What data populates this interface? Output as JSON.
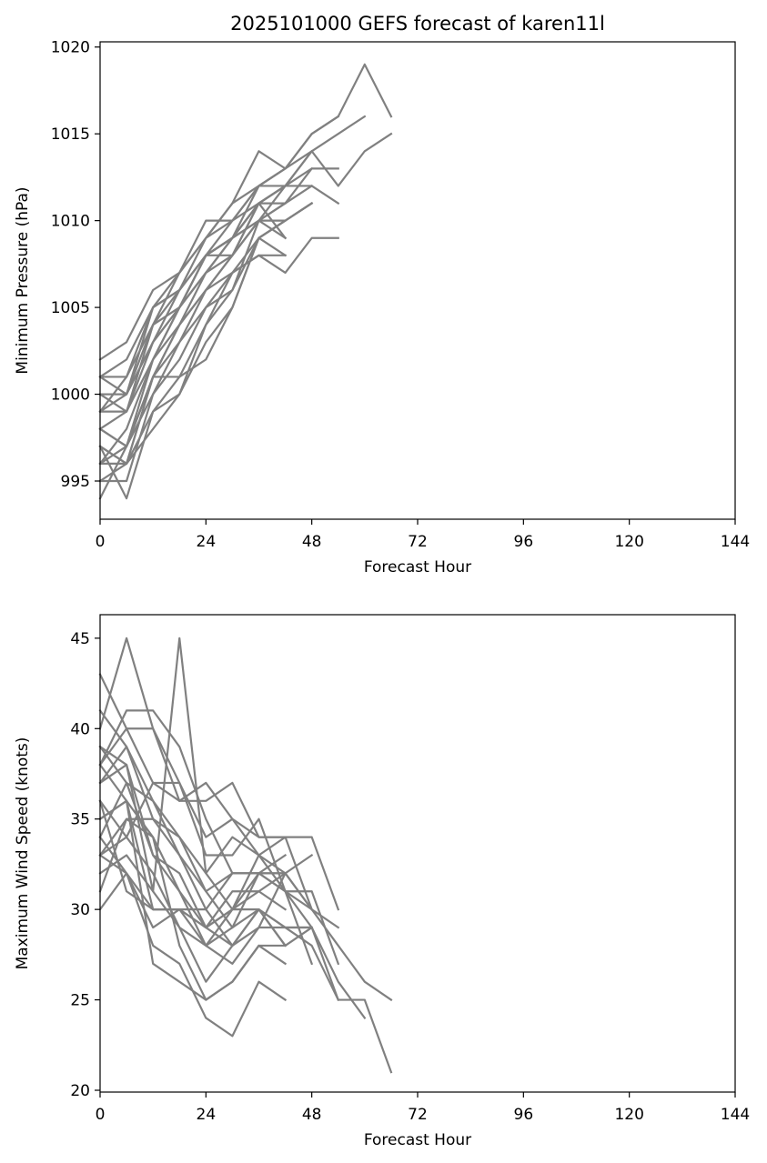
{
  "figure": {
    "title": "2025101000 GEFS forecast of karen11l"
  },
  "chart_data": [
    {
      "type": "line",
      "xlabel": "Forecast Hour",
      "ylabel": "Minimum Pressure (hPa)",
      "xlim": [
        0,
        144
      ],
      "ylim": [
        992.8,
        1020.3
      ],
      "xticks": [
        0,
        24,
        48,
        72,
        96,
        120,
        144
      ],
      "yticks": [
        995,
        1000,
        1005,
        1010,
        1015,
        1020
      ],
      "line_color": "#808080",
      "grid": false,
      "series": [
        {
          "x": [
            0,
            6,
            12,
            18,
            24,
            30,
            36,
            42,
            48,
            54,
            60,
            66
          ],
          "y": [
            999,
            1001,
            1005,
            1007,
            1010,
            1010,
            1012,
            1013,
            1015,
            1016,
            1019,
            1016
          ]
        },
        {
          "x": [
            0,
            6,
            12,
            18,
            24,
            30,
            36,
            42,
            48,
            54,
            60,
            66
          ],
          "y": [
            997,
            996,
            1001,
            1004,
            1007,
            1009,
            1011,
            1012,
            1014,
            1012,
            1014,
            1015
          ]
        },
        {
          "x": [
            0,
            6,
            12,
            18,
            24,
            30,
            36,
            42,
            48,
            54,
            60
          ],
          "y": [
            1001,
            1001,
            1004,
            1006,
            1009,
            1011,
            1012,
            1013,
            1014,
            1015,
            1016
          ]
        },
        {
          "x": [
            0,
            6,
            12,
            18,
            24,
            30,
            36,
            42,
            48,
            54
          ],
          "y": [
            1002,
            1003,
            1006,
            1007,
            1009,
            1011,
            1014,
            1013,
            1015,
            1016
          ]
        },
        {
          "x": [
            0,
            6,
            12,
            18,
            24,
            30,
            36,
            42,
            48,
            54
          ],
          "y": [
            1000,
            1000,
            1005,
            1006,
            1008,
            1009,
            1011,
            1011,
            1013,
            1013
          ]
        },
        {
          "x": [
            0,
            6,
            12,
            18,
            24,
            30,
            36,
            42,
            48,
            54
          ],
          "y": [
            998,
            999,
            1003,
            1005,
            1008,
            1009,
            1011,
            1012,
            1012,
            1011
          ]
        },
        {
          "x": [
            0,
            6,
            12,
            18,
            24,
            30,
            36,
            42,
            48,
            54
          ],
          "y": [
            996,
            996,
            1001,
            1003,
            1006,
            1007,
            1008,
            1007,
            1009,
            1009
          ]
        },
        {
          "x": [
            0,
            6,
            12,
            18,
            24,
            30,
            36,
            42,
            48
          ],
          "y": [
            995,
            995,
            1000,
            1003,
            1005,
            1006,
            1009,
            1010,
            1011
          ]
        },
        {
          "x": [
            0,
            6,
            12,
            18,
            24,
            30,
            36,
            42,
            48
          ],
          "y": [
            994,
            997,
            1001,
            1004,
            1006,
            1008,
            1010,
            1012,
            1014
          ]
        },
        {
          "x": [
            0,
            6,
            12,
            18,
            24,
            30,
            36,
            42,
            48
          ],
          "y": [
            999,
            999,
            1004,
            1005,
            1008,
            1008,
            1011,
            1012,
            1013
          ]
        },
        {
          "x": [
            0,
            6,
            12,
            18,
            24,
            30,
            36,
            42,
            48
          ],
          "y": [
            1001,
            1002,
            1005,
            1006,
            1008,
            1010,
            1011,
            1011,
            1012
          ]
        },
        {
          "x": [
            0,
            6,
            12,
            18,
            24,
            30,
            36,
            42,
            48
          ],
          "y": [
            997,
            994,
            999,
            1001,
            1004,
            1007,
            1009,
            1010,
            1011
          ]
        },
        {
          "x": [
            0,
            6,
            12,
            18,
            24,
            30,
            36,
            42,
            48
          ],
          "y": [
            996,
            997,
            1002,
            1004,
            1006,
            1008,
            1010,
            1010,
            1011
          ]
        },
        {
          "x": [
            0,
            6,
            12,
            18,
            24,
            30,
            36,
            42
          ],
          "y": [
            1000,
            1000,
            1004,
            1007,
            1009,
            1010,
            1012,
            1012
          ]
        },
        {
          "x": [
            0,
            6,
            12,
            18,
            24,
            30,
            36,
            42
          ],
          "y": [
            998,
            997,
            1000,
            1002,
            1005,
            1007,
            1008,
            1008
          ]
        },
        {
          "x": [
            0,
            6,
            12,
            18,
            24,
            30,
            36,
            42
          ],
          "y": [
            999,
            1000,
            1003,
            1005,
            1007,
            1008,
            1011,
            1009
          ]
        },
        {
          "x": [
            0,
            6,
            12,
            18,
            24,
            30,
            36,
            42
          ],
          "y": [
            997,
            996,
            998,
            1000,
            1004,
            1006,
            1010,
            1011
          ]
        },
        {
          "x": [
            0,
            6,
            12,
            18,
            24,
            30,
            36,
            42
          ],
          "y": [
            996,
            998,
            1002,
            1005,
            1008,
            1009,
            1010,
            1011
          ]
        },
        {
          "x": [
            0,
            6,
            12,
            18,
            24,
            30,
            36,
            42
          ],
          "y": [
            995,
            996,
            999,
            1000,
            1003,
            1005,
            1009,
            1008
          ]
        },
        {
          "x": [
            0,
            6,
            12,
            18,
            24,
            30,
            36,
            42
          ],
          "y": [
            1000,
            999,
            1002,
            1005,
            1007,
            1009,
            1010,
            1009
          ]
        },
        {
          "x": [
            0,
            6,
            12,
            18,
            24,
            30,
            36,
            42
          ],
          "y": [
            1001,
            1000,
            1003,
            1006,
            1008,
            1009,
            1012,
            1013
          ]
        },
        {
          "x": [
            0,
            6,
            12,
            18,
            24,
            30,
            36,
            42
          ],
          "y": [
            998,
            997,
            1001,
            1001,
            1002,
            1005,
            1009,
            1010
          ]
        }
      ]
    },
    {
      "type": "line",
      "xlabel": "Forecast Hour",
      "ylabel": "Maximum Wind Speed (knots)",
      "xlim": [
        0,
        144
      ],
      "ylim": [
        19.9,
        46.3
      ],
      "xticks": [
        0,
        24,
        48,
        72,
        96,
        120,
        144
      ],
      "yticks": [
        20,
        25,
        30,
        35,
        40,
        45
      ],
      "line_color": "#808080",
      "grid": false,
      "series": [
        {
          "x": [
            0,
            6,
            12,
            18,
            24,
            30,
            36,
            42,
            48,
            54,
            60,
            66
          ],
          "y": [
            40,
            45,
            40,
            36,
            37,
            35,
            33,
            31,
            30,
            28,
            26,
            25
          ]
        },
        {
          "x": [
            0,
            6,
            12,
            18,
            24,
            30,
            36,
            42,
            48,
            54,
            60,
            66
          ],
          "y": [
            33,
            35,
            34,
            31,
            29,
            28,
            29,
            29,
            28,
            25,
            25,
            21
          ]
        },
        {
          "x": [
            0,
            6,
            12,
            18,
            24,
            30,
            36,
            42,
            48,
            54,
            60
          ],
          "y": [
            38,
            41,
            41,
            39,
            35,
            32,
            32,
            31,
            29,
            26,
            24
          ]
        },
        {
          "x": [
            0,
            6,
            12,
            18,
            24,
            30,
            36,
            42,
            48,
            54
          ],
          "y": [
            43,
            40,
            37,
            36,
            36,
            37,
            34,
            34,
            34,
            30
          ]
        },
        {
          "x": [
            0,
            6,
            12,
            18,
            24,
            30,
            36,
            42,
            48,
            54
          ],
          "y": [
            39,
            37,
            33,
            31,
            28,
            29,
            32,
            31,
            31,
            27
          ]
        },
        {
          "x": [
            0,
            6,
            12,
            18,
            24,
            30,
            36,
            42,
            48,
            54
          ],
          "y": [
            35,
            36,
            30,
            30,
            29,
            30,
            33,
            32,
            30,
            29
          ]
        },
        {
          "x": [
            0,
            6,
            12,
            18,
            24,
            30,
            36,
            42,
            48,
            54
          ],
          "y": [
            34,
            32,
            29,
            30,
            28,
            30,
            30,
            29,
            29,
            25
          ]
        },
        {
          "x": [
            0,
            6,
            12,
            18,
            24,
            30,
            36,
            42,
            48
          ],
          "y": [
            37,
            39,
            36,
            33,
            31,
            32,
            32,
            32,
            30
          ]
        },
        {
          "x": [
            0,
            6,
            12,
            18,
            24,
            30,
            36,
            42,
            48
          ],
          "y": [
            36,
            34,
            32,
            29,
            26,
            28,
            30,
            29,
            29
          ]
        },
        {
          "x": [
            0,
            6,
            12,
            18,
            24,
            30,
            36,
            42,
            48
          ],
          "y": [
            41,
            39,
            35,
            34,
            32,
            34,
            33,
            34,
            30
          ]
        },
        {
          "x": [
            0,
            6,
            12,
            18,
            24,
            30,
            36,
            42,
            48
          ],
          "y": [
            32,
            33,
            31,
            29,
            28,
            27,
            29,
            32,
            33
          ]
        },
        {
          "x": [
            0,
            6,
            12,
            18,
            24,
            30,
            36,
            42,
            48
          ],
          "y": [
            38,
            40,
            40,
            37,
            33,
            33,
            35,
            31,
            27
          ]
        },
        {
          "x": [
            0,
            6,
            12,
            18,
            24,
            30,
            36,
            42,
            48
          ],
          "y": [
            34,
            37,
            36,
            34,
            31,
            29,
            30,
            28,
            29
          ]
        },
        {
          "x": [
            0,
            6,
            12,
            18,
            24,
            30,
            36,
            42
          ],
          "y": [
            30,
            32,
            28,
            27,
            24,
            23,
            26,
            25
          ]
        },
        {
          "x": [
            0,
            6,
            12,
            18,
            24,
            30,
            36,
            42
          ],
          "y": [
            35,
            36,
            27,
            26,
            25,
            26,
            28,
            27
          ]
        },
        {
          "x": [
            0,
            6,
            12,
            18,
            24,
            30,
            36,
            42
          ],
          "y": [
            37,
            38,
            31,
            45,
            32,
            30,
            32,
            33
          ]
        },
        {
          "x": [
            0,
            6,
            12,
            18,
            24,
            30,
            36,
            42
          ],
          "y": [
            33,
            34,
            37,
            37,
            34,
            35,
            34,
            34
          ]
        },
        {
          "x": [
            0,
            6,
            12,
            18,
            24,
            30,
            36,
            42
          ],
          "y": [
            36,
            31,
            30,
            30,
            29,
            31,
            31,
            30
          ]
        },
        {
          "x": [
            0,
            6,
            12,
            18,
            24,
            30,
            36,
            42
          ],
          "y": [
            39,
            38,
            33,
            32,
            29,
            30,
            31,
            32
          ]
        },
        {
          "x": [
            0,
            6,
            12,
            18,
            24,
            30,
            36,
            42
          ],
          "y": [
            31,
            35,
            35,
            33,
            30,
            32,
            32,
            32
          ]
        },
        {
          "x": [
            0,
            6,
            12,
            18,
            24,
            30,
            36,
            42
          ],
          "y": [
            38,
            36,
            34,
            28,
            25,
            26,
            28,
            28
          ]
        },
        {
          "x": [
            0,
            6,
            12,
            18,
            24,
            30,
            36,
            42
          ],
          "y": [
            33,
            32,
            30,
            30,
            30,
            28,
            30,
            28
          ]
        }
      ]
    }
  ]
}
